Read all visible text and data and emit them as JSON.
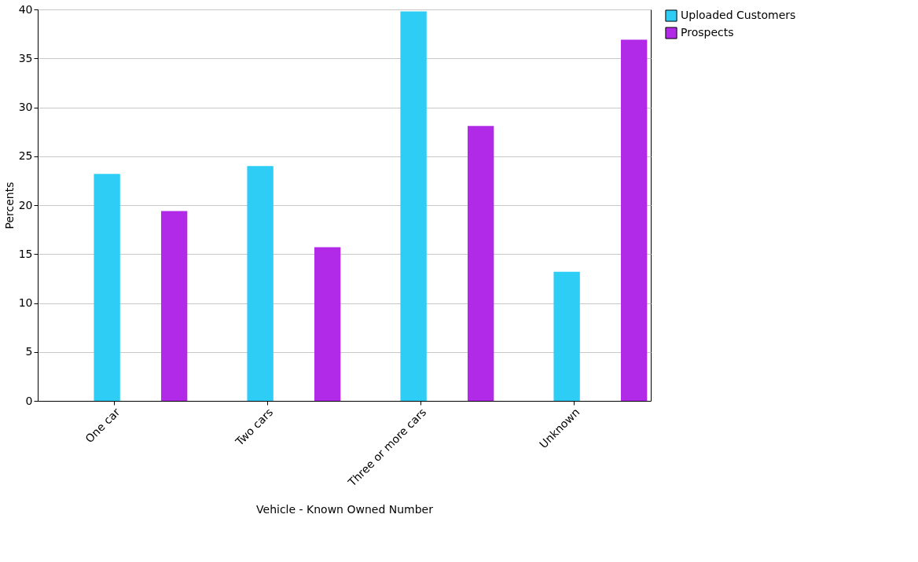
{
  "chart_data": {
    "type": "bar",
    "xlabel": "Vehicle - Known Owned Number",
    "ylabel": "Percents",
    "categories": [
      "One car",
      "Two cars",
      "Three or more cars",
      "Unknown"
    ],
    "series": [
      {
        "name": "Uploaded Customers",
        "color": "#2ecdf5",
        "values": [
          23.2,
          24.0,
          39.8,
          13.2
        ]
      },
      {
        "name": "Prospects",
        "color": "#b02ae8",
        "values": [
          19.4,
          15.7,
          28.1,
          36.9
        ]
      }
    ],
    "ylim": [
      0,
      40
    ],
    "yticks": [
      0,
      5,
      10,
      15,
      20,
      25,
      30,
      35,
      40
    ],
    "grid": "y",
    "legend": "right"
  }
}
